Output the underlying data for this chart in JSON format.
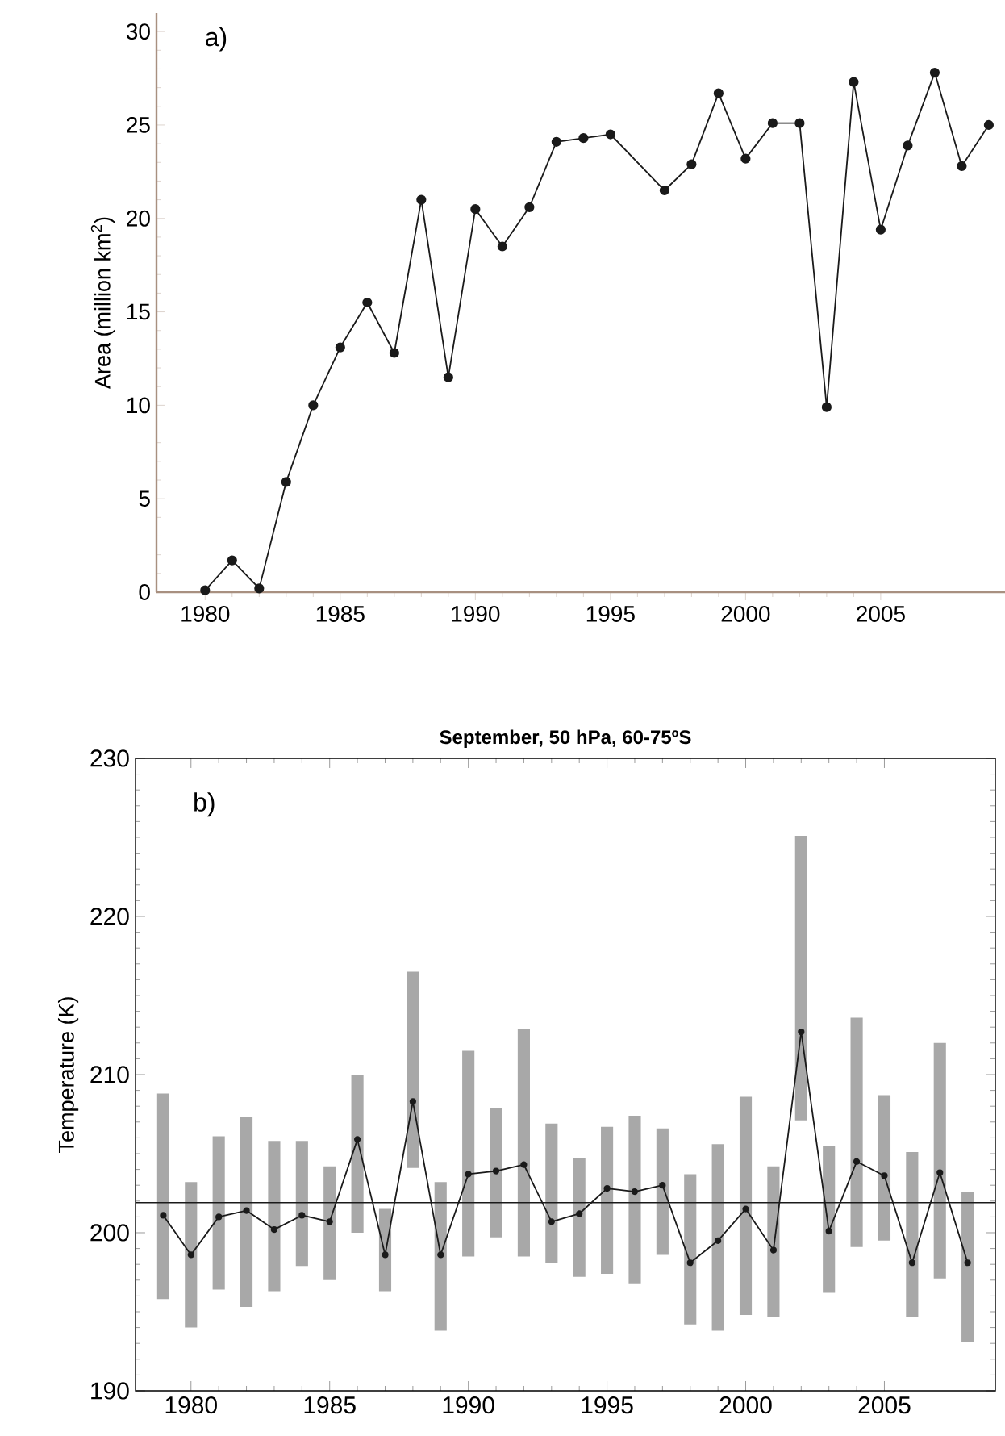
{
  "chart_data": [
    {
      "type": "line",
      "ylabel": "Area (million km$^{2}$)",
      "annotations": [
        "a)"
      ],
      "x": [
        1980,
        1981,
        1982,
        1983,
        1984,
        1985,
        1986,
        1987,
        1988,
        1989,
        1990,
        1991,
        1992,
        1993,
        1994,
        1995,
        1997,
        1998,
        1999,
        2000,
        2001,
        2002,
        2003,
        2004,
        2005,
        2006,
        2007,
        2008,
        2009
      ],
      "series": [
        {
          "color": "#1a1a1a",
          "values": [
            0.1,
            1.7,
            0.2,
            5.9,
            10.0,
            13.1,
            15.5,
            12.8,
            21.0,
            11.5,
            20.5,
            18.5,
            20.6,
            24.1,
            24.3,
            24.5,
            21.5,
            22.9,
            26.7,
            23.2,
            25.1,
            25.1,
            9.9,
            27.3,
            19.4,
            23.9,
            27.8,
            22.8,
            25.0
          ]
        }
      ],
      "marker": "circle",
      "xlim": [
        1978.2,
        2009.6
      ],
      "ylim": [
        0,
        31
      ],
      "xticks": [
        1980,
        1985,
        1990,
        1995,
        2000,
        2005
      ],
      "yticks": [
        0,
        5,
        10,
        15,
        20,
        25,
        30
      ]
    },
    {
      "type": "bar",
      "title": "September, 50 hPa, 60-75ºS",
      "ylabel": "Temperature (K)",
      "annotations": [
        "b)"
      ],
      "x": [
        1979,
        1980,
        1981,
        1982,
        1983,
        1984,
        1985,
        1986,
        1987,
        1988,
        1989,
        1990,
        1991,
        1992,
        1993,
        1994,
        1995,
        1996,
        1997,
        1998,
        1999,
        2000,
        2001,
        2002,
        2003,
        2004,
        2005,
        2006,
        2007,
        2008
      ],
      "series": [
        {
          "type": "bar",
          "color": "#a8a8a8",
          "base": [
            195.8,
            194.0,
            196.4,
            195.3,
            196.3,
            197.9,
            197.0,
            200.0,
            196.3,
            204.1,
            193.8,
            198.5,
            199.7,
            198.5,
            198.1,
            197.2,
            197.4,
            196.8,
            198.6,
            194.2,
            193.8,
            194.8,
            194.7,
            207.1,
            196.2,
            199.1,
            199.5,
            194.7,
            197.1,
            193.1
          ],
          "values": [
            13.0,
            9.2,
            9.7,
            12.0,
            9.5,
            7.9,
            7.2,
            10.0,
            5.2,
            12.4,
            9.4,
            13.0,
            8.2,
            14.4,
            8.8,
            7.5,
            9.3,
            10.6,
            8.0,
            9.5,
            11.8,
            13.8,
            9.5,
            18.0,
            9.3,
            14.5,
            9.2,
            10.4,
            14.9,
            9.5
          ]
        },
        {
          "type": "line",
          "color": "#1a1a1a",
          "marker": "circle",
          "values": [
            201.1,
            198.6,
            201.0,
            201.4,
            200.2,
            201.1,
            200.7,
            205.9,
            198.6,
            208.3,
            198.6,
            203.7,
            203.9,
            204.3,
            200.7,
            201.2,
            202.8,
            202.6,
            203.0,
            198.1,
            199.5,
            201.5,
            198.9,
            212.7,
            200.1,
            204.5,
            203.6,
            198.1,
            203.8,
            198.1
          ]
        }
      ],
      "ref_lines": [
        {
          "axis": "y",
          "value": 201.9,
          "color": "#1a1a1a"
        }
      ],
      "xlim": [
        1978,
        2009
      ],
      "ylim": [
        190,
        230
      ],
      "xticks": [
        1980,
        1985,
        1990,
        1995,
        2000,
        2005
      ],
      "yticks": [
        190,
        200,
        210,
        220,
        230
      ]
    }
  ]
}
